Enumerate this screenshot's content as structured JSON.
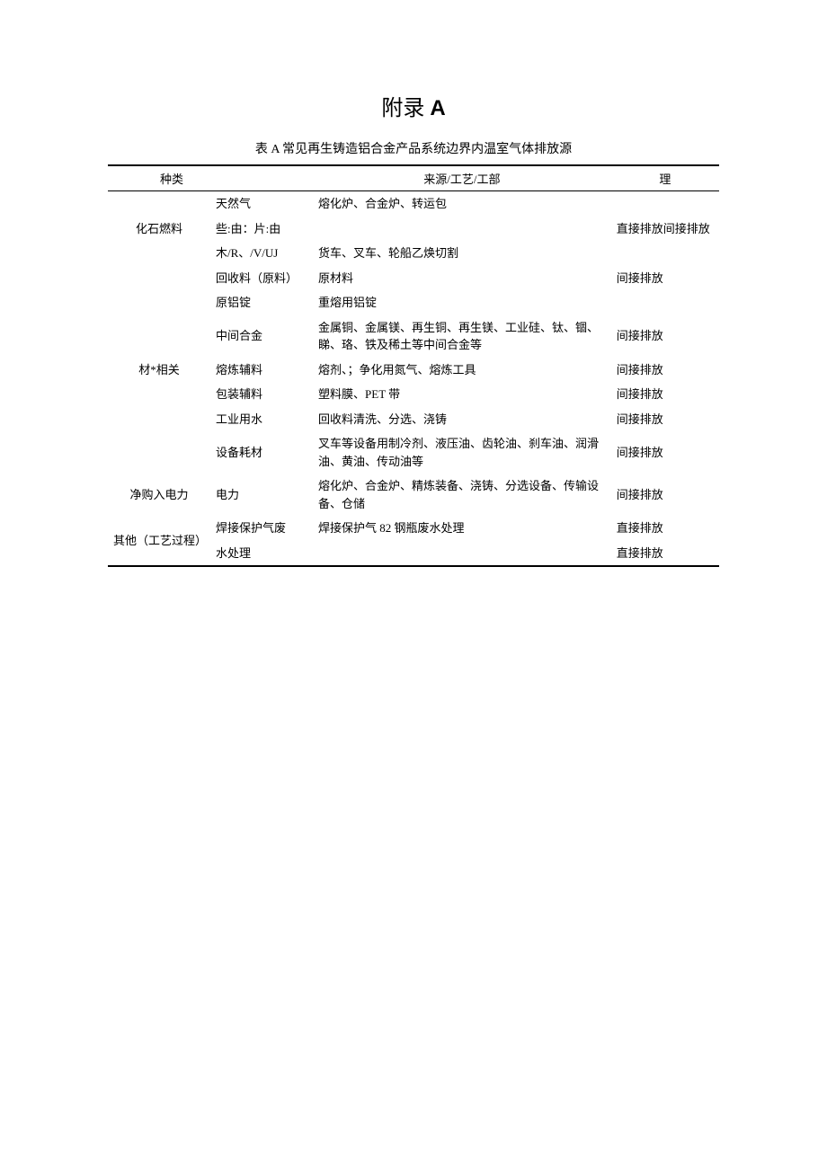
{
  "title_prefix": "附录",
  "title_suffix": "A",
  "subtitle": "表 A 常见再生铸造铝合金产品系统边界内温室气体排放源",
  "headers": {
    "col1": "种类",
    "col2": "",
    "col3": "来源/工艺/工部",
    "col4": "理"
  },
  "groups": [
    {
      "category": "化石燃料",
      "rows": [
        {
          "c2": "天然气",
          "c3": "熔化炉、合金炉、转运包",
          "c4": ""
        },
        {
          "c2": "些:由：片:由",
          "c3": "",
          "c4": "直接排放间接排放"
        },
        {
          "c2": "木/R、/V/UJ",
          "c3": "货车、叉车、轮船乙焕切割",
          "c4": ""
        }
      ]
    },
    {
      "category": "材*相关",
      "rows": [
        {
          "c2": "回收料（原料）",
          "c3": "原材料",
          "c4": "间接排放"
        },
        {
          "c2": "原铝锭",
          "c3": "重熔用铝锭",
          "c4": ""
        },
        {
          "c2": "中间合金",
          "c3": "金属铜、金属镁、再生铜、再生镁、工业硅、钛、锢、睇、珞、铁及稀土等中间合金等",
          "c4": "间接排放"
        },
        {
          "c2": "熔炼辅料",
          "c3": "熔剂、；争化用氮气、熔炼工具",
          "c4": "间接排放"
        },
        {
          "c2": "包装辅料",
          "c3": "塑料膜、PET 带",
          "c4": "间接排放"
        },
        {
          "c2": "工业用水",
          "c3": "回收料清洗、分选、浇铸",
          "c4": "间接排放"
        },
        {
          "c2": "设备耗材",
          "c3": "叉车等设备用制冷剂、液压油、齿轮油、刹车油、润滑油、黄油、传动油等",
          "c4": "间接排放"
        }
      ]
    },
    {
      "category": "净购入电力",
      "rows": [
        {
          "c2": "电力",
          "c3": "熔化炉、合金炉、精炼装备、浇铸、分选设备、传输设备、仓储",
          "c4": "间接排放"
        }
      ]
    },
    {
      "category": "其他（工艺过程）",
      "rows": [
        {
          "c2": "焊接保护气废",
          "c3": "焊接保护气 82 钢瓶废水处理",
          "c4": "直接排放"
        },
        {
          "c2": "水处理",
          "c3": "",
          "c4": "直接排放"
        }
      ]
    }
  ],
  "colors": {
    "text": "#000000",
    "background": "#ffffff",
    "border": "#000000"
  },
  "typography": {
    "title_fontsize": 24,
    "subtitle_fontsize": 14,
    "body_fontsize": 13,
    "font_family": "SimSun"
  }
}
